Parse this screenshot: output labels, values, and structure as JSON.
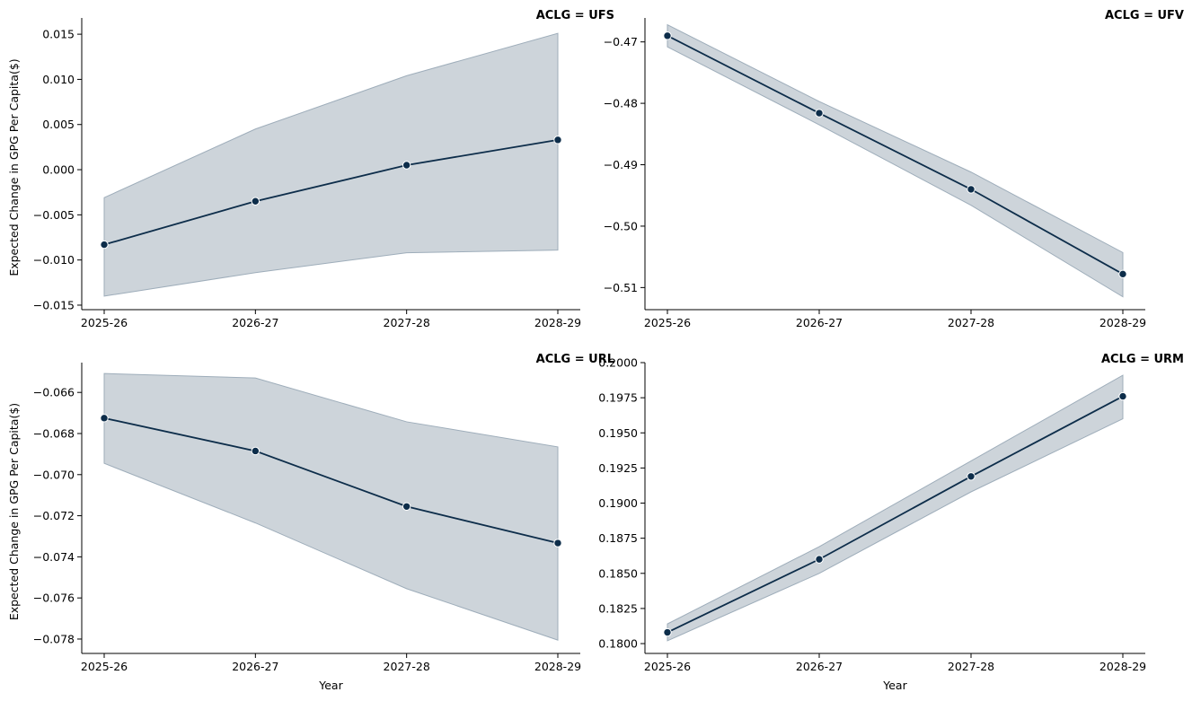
{
  "chart_data": [
    {
      "type": "line",
      "title": "ACLG = UFS",
      "xlabel": "",
      "ylabel": "Expected Change in GPG Per Capita($)",
      "x": [
        "2025-26",
        "2026-27",
        "2027-28",
        "2028-29"
      ],
      "values": [
        -0.0083,
        -0.0035,
        0.0005,
        0.0033
      ],
      "ci_lower": [
        -0.014,
        -0.0114,
        -0.0092,
        -0.0089
      ],
      "ci_upper": [
        -0.0031,
        0.0045,
        0.0104,
        0.0151
      ],
      "ylim": [
        -0.0155,
        0.0168
      ],
      "yticks": [
        -0.015,
        -0.01,
        -0.005,
        0.0,
        0.005,
        0.01,
        0.015
      ],
      "ytick_labels": [
        "−0.015",
        "−0.010",
        "−0.005",
        "0.000",
        "0.005",
        "0.010",
        "0.015"
      ]
    },
    {
      "type": "line",
      "title": "ACLG = UFV",
      "xlabel": "",
      "ylabel": "",
      "x": [
        "2025-26",
        "2026-27",
        "2027-28",
        "2028-29"
      ],
      "values": [
        -0.469,
        -0.4816,
        -0.494,
        -0.5078
      ],
      "ci_lower": [
        -0.4708,
        -0.4835,
        -0.4966,
        -0.5115
      ],
      "ci_upper": [
        -0.4672,
        -0.4797,
        -0.4912,
        -0.5043
      ],
      "ylim": [
        -0.5136,
        -0.4661
      ],
      "yticks": [
        -0.47,
        -0.48,
        -0.49,
        -0.5,
        -0.51
      ],
      "ytick_labels": [
        "−0.47",
        "−0.48",
        "−0.49",
        "−0.50",
        "−0.51"
      ]
    },
    {
      "type": "line",
      "title": "ACLG = URL",
      "xlabel": "",
      "ylabel": "Expected Change in GPG Per Capita($)",
      "x": [
        "2025-26",
        "2026-27",
        "2027-28",
        "2028-29"
      ],
      "values": [
        -0.06725,
        -0.06885,
        -0.07155,
        -0.07333
      ],
      "ci_lower": [
        -0.06945,
        -0.07235,
        -0.07555,
        -0.07805
      ],
      "ci_upper": [
        -0.06508,
        -0.0653,
        -0.06743,
        -0.06865
      ],
      "ylim": [
        -0.0787,
        -0.06455
      ],
      "yticks": [
        -0.066,
        -0.068,
        -0.07,
        -0.072,
        -0.074,
        -0.076,
        -0.078
      ],
      "ytick_labels": [
        "−0.066",
        "−0.068",
        "−0.070",
        "−0.072",
        "−0.074",
        "−0.076",
        "−0.078"
      ]
    },
    {
      "type": "line",
      "title": "ACLG = URM",
      "xlabel": "Year",
      "ylabel": "",
      "x": [
        "2025-26",
        "2026-27",
        "2027-28",
        "2028-29"
      ],
      "values": [
        0.1808,
        0.186,
        0.1919,
        0.1976
      ],
      "ci_lower": [
        0.1802,
        0.185,
        0.1908,
        0.196
      ],
      "ci_upper": [
        0.1814,
        0.1869,
        0.193,
        0.1991
      ],
      "ylim": [
        0.1793,
        0.2
      ],
      "yticks": [
        0.18,
        0.1825,
        0.185,
        0.1875,
        0.19,
        0.1925,
        0.195,
        0.1975,
        0.2
      ],
      "ytick_labels": [
        "0.1800",
        "0.1825",
        "0.1850",
        "0.1875",
        "0.1900",
        "0.1925",
        "0.1950",
        "0.1975",
        "0.2000"
      ]
    }
  ],
  "panel_xlabels": [
    "",
    "",
    "Year",
    "Year"
  ],
  "colors": {
    "line": "#0d2d4a",
    "marker_fill": "#0d2d4a",
    "marker_edge": "#ffffff",
    "ci_fill": "#cdd4da",
    "ci_edge": "#9eadba"
  }
}
